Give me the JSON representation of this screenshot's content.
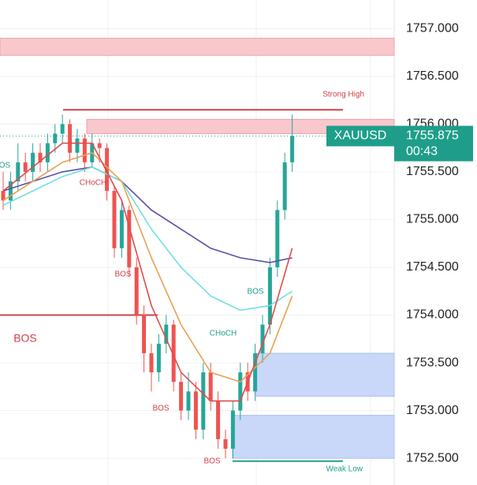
{
  "chart_data": {
    "type": "candlestick",
    "ylim": [
      1752.22,
      1757.3
    ],
    "yticks": [
      {
        "value": 1752.5,
        "label": "1752.500"
      },
      {
        "value": 1753,
        "label": "1753.000"
      },
      {
        "value": 1753.5,
        "label": "1753.500"
      },
      {
        "value": 1754,
        "label": "1754.000"
      },
      {
        "value": 1754.5,
        "label": "1754.500"
      },
      {
        "value": 1755,
        "label": "1755.000"
      },
      {
        "value": 1755.5,
        "label": "1755.500"
      },
      {
        "value": 1756,
        "label": "1756.000"
      },
      {
        "value": 1756.5,
        "label": "1756.500"
      },
      {
        "value": 1757,
        "label": "1757.000"
      }
    ],
    "grid": true,
    "up_color": "#26a69a",
    "down_color": "#ef5350",
    "open": [
      1755.3,
      1755.2,
      1755.4,
      1755.6,
      1755.5,
      1755.7,
      1755.6,
      1755.8,
      1755.9,
      1756.0,
      1755.7,
      1755.85,
      1755.6,
      1755.8,
      1755.75,
      1755.3,
      1754.7,
      1755.1,
      1754.5,
      1754.0,
      1753.6,
      1753.4,
      1753.7,
      1753.9,
      1753.3,
      1753.0,
      1753.2,
      1752.8,
      1753.4,
      1753.1,
      1752.7,
      1752.6,
      1753.0,
      1753.4,
      1753.2,
      1753.6,
      1753.9,
      1754.5,
      1755.1,
      1755.6
    ],
    "high": [
      1755.5,
      1755.5,
      1755.8,
      1755.7,
      1755.8,
      1755.8,
      1755.9,
      1756.0,
      1756.1,
      1756.05,
      1755.95,
      1755.9,
      1755.9,
      1755.85,
      1755.8,
      1755.35,
      1755.2,
      1755.15,
      1754.6,
      1754.1,
      1753.7,
      1753.8,
      1754.0,
      1753.95,
      1753.4,
      1753.4,
      1753.3,
      1753.5,
      1753.5,
      1753.2,
      1752.8,
      1753.1,
      1753.5,
      1753.5,
      1753.7,
      1754.0,
      1754.6,
      1755.2,
      1755.7,
      1756.1
    ],
    "low": [
      1755.1,
      1755.1,
      1755.3,
      1755.4,
      1755.4,
      1755.5,
      1755.5,
      1755.7,
      1755.8,
      1755.6,
      1755.6,
      1755.5,
      1755.55,
      1755.6,
      1755.2,
      1754.6,
      1754.6,
      1754.4,
      1753.9,
      1753.4,
      1753.2,
      1753.3,
      1753.6,
      1753.2,
      1752.9,
      1752.9,
      1752.7,
      1752.7,
      1753.0,
      1752.6,
      1752.5,
      1752.5,
      1752.9,
      1753.1,
      1753.1,
      1753.5,
      1753.8,
      1754.4,
      1755.0,
      1755.5
    ],
    "close": [
      1755.2,
      1755.4,
      1755.6,
      1755.5,
      1755.7,
      1755.6,
      1755.8,
      1755.9,
      1756.0,
      1755.7,
      1755.85,
      1755.6,
      1755.8,
      1755.75,
      1755.3,
      1754.7,
      1755.1,
      1754.5,
      1754.0,
      1753.6,
      1753.4,
      1753.7,
      1753.9,
      1753.3,
      1753.0,
      1753.2,
      1752.8,
      1753.4,
      1753.1,
      1752.7,
      1752.6,
      1753.0,
      1753.4,
      1753.2,
      1753.6,
      1753.9,
      1754.5,
      1755.1,
      1755.6,
      1755.875
    ],
    "ma_x": [
      0,
      4,
      8,
      12,
      16,
      20,
      24,
      28,
      32,
      36,
      39
    ],
    "moving_averages": [
      {
        "color": "#5a4fa8",
        "values": [
          1755.3,
          1755.4,
          1755.5,
          1755.55,
          1755.4,
          1755.1,
          1754.9,
          1754.7,
          1754.6,
          1754.55,
          1754.6
        ]
      },
      {
        "color": "#6fe0e0",
        "values": [
          1755.15,
          1755.3,
          1755.45,
          1755.55,
          1755.4,
          1754.9,
          1754.5,
          1754.2,
          1754.05,
          1754.1,
          1754.25
        ]
      },
      {
        "color": "#e8a050",
        "values": [
          1755.2,
          1755.4,
          1755.6,
          1755.7,
          1755.4,
          1754.6,
          1753.9,
          1753.4,
          1753.3,
          1753.6,
          1754.2
        ]
      },
      {
        "color": "#e04b4b",
        "values": [
          1755.3,
          1755.55,
          1755.8,
          1755.8,
          1755.2,
          1754.1,
          1753.4,
          1753.1,
          1753.1,
          1753.9,
          1754.7
        ]
      }
    ],
    "zones": [
      {
        "top": 1756.9,
        "bottom": 1756.72,
        "color": "#f8c8cc"
      },
      {
        "top": 1756.05,
        "bottom": 1755.9,
        "color": "#f8c8cc"
      },
      {
        "top": 1753.6,
        "bottom": 1753.15,
        "color": "#c9d8f8"
      },
      {
        "top": 1752.95,
        "bottom": 1752.5,
        "color": "#c9d8f8"
      }
    ],
    "levels": [
      {
        "value": 1756.15,
        "label": "Strong High",
        "color": "#d0404a"
      },
      {
        "value": 1752.47,
        "label": "Weak Low",
        "color": "#1e9e8a"
      },
      {
        "value": 1754.0,
        "label": "BOS",
        "color": "#d0404a"
      }
    ],
    "annotations": [
      "OS",
      "CHoCH",
      "BOS",
      "BOS",
      "CHoCH",
      "BOS",
      "BOS"
    ],
    "last_price": {
      "symbol": "XAUUSD",
      "value": 1755.875,
      "label": "1755.875",
      "countdown": "00:43"
    }
  }
}
